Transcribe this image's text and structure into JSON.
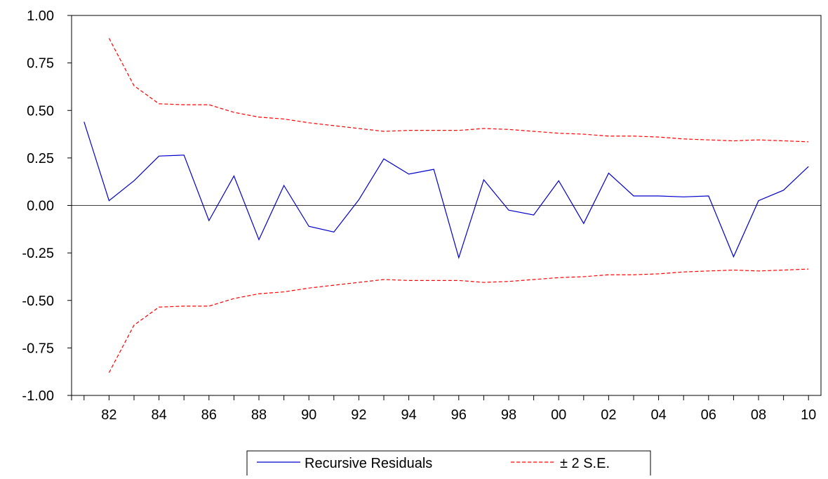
{
  "chart_data": {
    "type": "line",
    "title": "",
    "xlabel": "",
    "ylabel": "",
    "x": [
      1981,
      1982,
      1983,
      1984,
      1985,
      1986,
      1987,
      1988,
      1989,
      1990,
      1991,
      1992,
      1993,
      1994,
      1995,
      1996,
      1997,
      1998,
      1999,
      2000,
      2001,
      2002,
      2003,
      2004,
      2005,
      2006,
      2007,
      2008,
      2009,
      2010
    ],
    "x_tick_labels": [
      {
        "x": 1982,
        "label": "82"
      },
      {
        "x": 1984,
        "label": "84"
      },
      {
        "x": 1986,
        "label": "86"
      },
      {
        "x": 1988,
        "label": "88"
      },
      {
        "x": 1990,
        "label": "90"
      },
      {
        "x": 1992,
        "label": "92"
      },
      {
        "x": 1994,
        "label": "94"
      },
      {
        "x": 1996,
        "label": "96"
      },
      {
        "x": 1998,
        "label": "98"
      },
      {
        "x": 2000,
        "label": "00"
      },
      {
        "x": 2002,
        "label": "02"
      },
      {
        "x": 2004,
        "label": "04"
      },
      {
        "x": 2006,
        "label": "06"
      },
      {
        "x": 2008,
        "label": "08"
      },
      {
        "x": 2010,
        "label": "10"
      }
    ],
    "y_ticks": [
      {
        "value": 1.0,
        "label": "1.00"
      },
      {
        "value": 0.75,
        "label": "0.75"
      },
      {
        "value": 0.5,
        "label": "0.50"
      },
      {
        "value": 0.25,
        "label": "0.25"
      },
      {
        "value": 0.0,
        "label": "0.00"
      },
      {
        "value": -0.25,
        "label": "-0.25"
      },
      {
        "value": -0.5,
        "label": "-0.50"
      },
      {
        "value": -0.75,
        "label": "-0.75"
      },
      {
        "value": -1.0,
        "label": "-1.00"
      }
    ],
    "xlim": [
      1980.5,
      2010.5
    ],
    "ylim": [
      -1.0,
      1.0
    ],
    "grid": false,
    "zero_line": true,
    "legend_position": "bottom-center",
    "series": [
      {
        "name": "Recursive Residuals",
        "color": "#0000cc",
        "style": "solid",
        "values": [
          0.44,
          0.025,
          0.13,
          0.26,
          0.265,
          -0.08,
          0.155,
          -0.18,
          0.105,
          -0.11,
          -0.14,
          0.03,
          0.245,
          0.165,
          0.19,
          -0.275,
          0.135,
          -0.025,
          -0.05,
          0.13,
          -0.095,
          0.17,
          0.05,
          0.05,
          0.045,
          0.05,
          -0.27,
          0.025,
          0.08,
          0.205
        ]
      },
      {
        "name": "± 2 S.E.",
        "color": "#ff0000",
        "style": "dashed",
        "upper": [
          null,
          0.88,
          0.63,
          0.535,
          0.53,
          0.53,
          0.49,
          0.465,
          0.455,
          0.435,
          0.42,
          0.405,
          0.39,
          0.395,
          0.395,
          0.395,
          0.405,
          0.4,
          0.39,
          0.38,
          0.375,
          0.365,
          0.365,
          0.36,
          0.35,
          0.345,
          0.34,
          0.345,
          0.34,
          0.335
        ],
        "lower": [
          null,
          -0.88,
          -0.63,
          -0.535,
          -0.53,
          -0.53,
          -0.49,
          -0.465,
          -0.455,
          -0.435,
          -0.42,
          -0.405,
          -0.39,
          -0.395,
          -0.395,
          -0.395,
          -0.405,
          -0.4,
          -0.39,
          -0.38,
          -0.375,
          -0.365,
          -0.365,
          -0.36,
          -0.35,
          -0.345,
          -0.34,
          -0.345,
          -0.34,
          -0.335
        ]
      }
    ],
    "legend": [
      {
        "label": "Recursive Residuals",
        "color": "#0000cc",
        "style": "solid"
      },
      {
        "label": "± 2 S.E.",
        "color": "#ff0000",
        "style": "dashed"
      }
    ]
  }
}
